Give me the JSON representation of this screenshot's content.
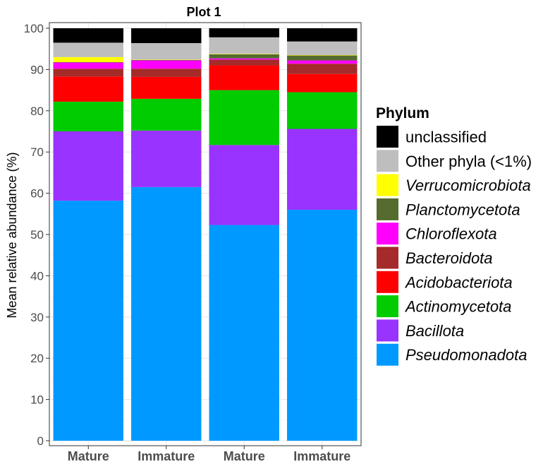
{
  "chart_data": {
    "type": "bar",
    "stacked": true,
    "title": "Plot 1",
    "xlabel": "",
    "ylabel": "Mean relative abundance (%)",
    "ylim": [
      0,
      100
    ],
    "yticks": [
      "0",
      "10",
      "20",
      "30",
      "40",
      "50",
      "60",
      "70",
      "80",
      "90",
      "100"
    ],
    "categories": [
      "Mature",
      "Immature",
      "Mature",
      "Immature"
    ],
    "grid": true,
    "legend": {
      "title": "Phylum",
      "placement": "right"
    },
    "series": [
      {
        "name": "Pseudomonadota",
        "color": "#0099FF",
        "italic": true,
        "values": [
          58.2,
          61.5,
          52.3,
          56.0
        ]
      },
      {
        "name": "Bacillota",
        "color": "#9933FF",
        "italic": true,
        "values": [
          16.8,
          13.7,
          19.4,
          19.6
        ]
      },
      {
        "name": "Actinomycetota",
        "color": "#00CC00",
        "italic": true,
        "values": [
          7.2,
          7.7,
          13.3,
          8.9
        ]
      },
      {
        "name": "Acidobacteriota",
        "color": "#FF0000",
        "italic": true,
        "values": [
          6.1,
          5.3,
          6.0,
          4.4
        ]
      },
      {
        "name": "Bacteroidota",
        "color": "#A52A2A",
        "italic": true,
        "values": [
          1.9,
          2.0,
          1.4,
          2.5
        ]
      },
      {
        "name": "Chloroflexota",
        "color": "#FF00FF",
        "italic": true,
        "values": [
          1.5,
          2.0,
          0.3,
          0.8
        ]
      },
      {
        "name": "Planctomycetota",
        "color": "#556B2F",
        "italic": true,
        "values": [
          0.1,
          0.1,
          1.0,
          1.2
        ]
      },
      {
        "name": "Verrucomicrobiota",
        "color": "#FFFF00",
        "italic": true,
        "values": [
          1.2,
          0.1,
          0.1,
          0.1
        ]
      },
      {
        "name": "Other phyla (<1%)",
        "color": "#BEBEBE",
        "italic": false,
        "values": [
          3.5,
          4.0,
          4.0,
          3.3
        ]
      },
      {
        "name": "unclassified",
        "color": "#000000",
        "italic": false,
        "values": [
          3.5,
          3.6,
          2.2,
          3.2
        ]
      }
    ]
  }
}
